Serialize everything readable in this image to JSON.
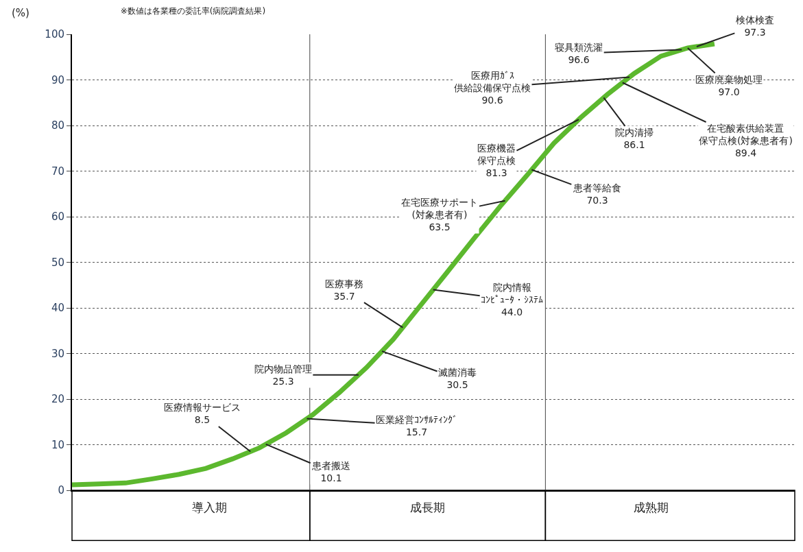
{
  "chart_data": {
    "type": "line",
    "title": "※数値は各業種の委託率(病院調査結果)",
    "ylabel": "(%)",
    "categories": [
      null,
      null,
      null,
      null,
      null,
      null,
      null,
      null,
      null,
      null,
      null,
      null,
      null,
      null,
      null,
      null,
      null,
      null,
      null,
      null,
      null,
      null,
      null,
      null,
      null,
      null,
      null,
      null
    ],
    "ylim": [
      0,
      100
    ],
    "yticks": [
      0,
      10,
      20,
      30,
      40,
      50,
      60,
      70,
      80,
      90,
      100
    ],
    "grid": "y",
    "marker": "none",
    "line_style": "solid",
    "series": [
      {
        "color": "#5cb82e",
        "values": [
          1.2,
          1.4,
          1.6,
          2.5,
          3.5,
          4.8,
          6.9,
          9.3,
          12.6,
          16.6,
          21.5,
          26.9,
          33.1,
          40.4,
          47.7,
          55.1,
          62.3,
          69.1,
          76.1,
          81.7,
          86.8,
          91.4,
          95.2,
          97.0,
          97.9,
          null,
          null,
          null
        ]
      }
    ],
    "annotations": [
      "医療情報サービス\n8.5",
      "患者搬送\n10.1",
      "医業経営ｺﾝｻﾙﾃｨﾝｸﾞ\n15.7",
      "院内物品管理\n25.3",
      "滅菌消毒\n30.5",
      "医療事務\n35.7",
      "院内情報ｺﾝﾋﾟｭｰﾀ・ｼｽﾃﾑ\n44.0",
      "在宅医療サポート\n(対象患者有)\n63.5",
      "患者等給食\n70.3",
      "医療機器保守点検\n81.3",
      "院内清掃\n86.1",
      "在宅酸素供給装置保守点検(対象患者有)\n89.4",
      "医療用ｶﾞｽ供給設備保守点検\n90.6",
      "医療廃棄物処理\n97.0",
      "寝具類洗濯\n96.6",
      "検体検査\n97.3",
      "導入期",
      "成長期",
      "成熟期"
    ]
  }
}
